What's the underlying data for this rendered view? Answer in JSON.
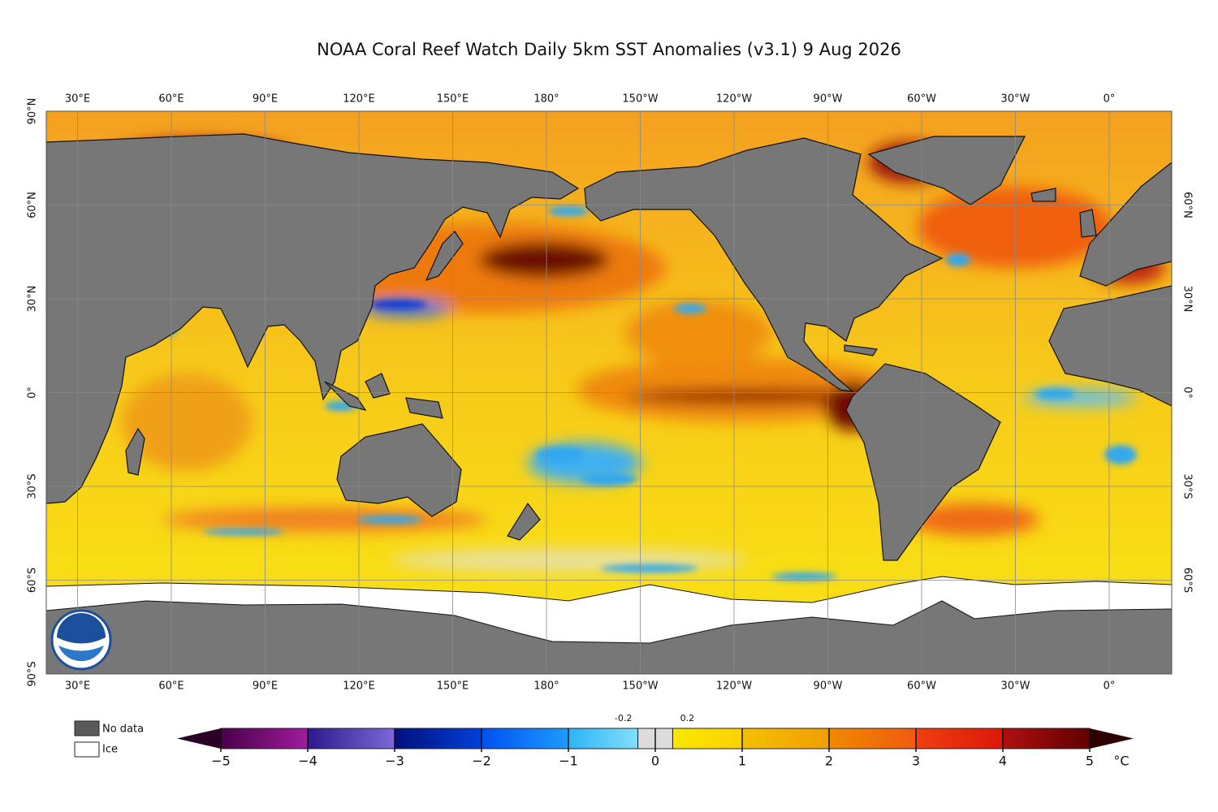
{
  "map": {
    "title": "NOAA Coral Reef Watch Daily 5km SST Anomalies  (v3.1)   9 Aug 2026",
    "lon_labels": [
      "30°E",
      "60°E",
      "90°E",
      "120°E",
      "150°E",
      "180°",
      "150°W",
      "120°W",
      "90°W",
      "60°W",
      "30°W",
      "0°"
    ],
    "lat_labels_left": [
      "90°N",
      "60°N",
      "30°N",
      "0°",
      "30°S",
      "60°S",
      "90°S"
    ],
    "lat_labels_right": [
      "60°N",
      "30°N",
      "0°",
      "30°S",
      "60°S"
    ],
    "legend": {
      "no_data": "No data",
      "ice": "Ice",
      "no_data_color": "#5a5a5a",
      "ice_color": "#ffffff"
    },
    "colorbar": {
      "ticks": [
        {
          "value": -5,
          "label": "−5"
        },
        {
          "value": -4,
          "label": "−4"
        },
        {
          "value": -3,
          "label": "−3"
        },
        {
          "value": -2,
          "label": "−2"
        },
        {
          "value": -1,
          "label": "−1"
        },
        0,
        1,
        2,
        3,
        4,
        5
      ],
      "minor_ticks": [
        -0.2,
        0.2
      ],
      "unit": "°C",
      "colors": [
        [
          "#4a0048",
          "#a01ca0"
        ],
        [
          "#2c1a8c",
          "#7c68d8"
        ],
        [
          "#00107e",
          "#0040d8"
        ],
        [
          "#0050f0",
          "#1e9cff"
        ],
        [
          "#2cb4f4",
          "#9ae8ff"
        ],
        [
          "#f8ec00",
          "#ffd200"
        ],
        [
          "#f4c000",
          "#f09e00"
        ],
        [
          "#f08a00",
          "#f05a10"
        ],
        [
          "#ee4010",
          "#dc1808"
        ],
        [
          "#b01010",
          "#600000"
        ]
      ],
      "neutral_color": "#dcdcdc",
      "low_color": "#2a0024",
      "high_color": "#300000"
    }
  }
}
